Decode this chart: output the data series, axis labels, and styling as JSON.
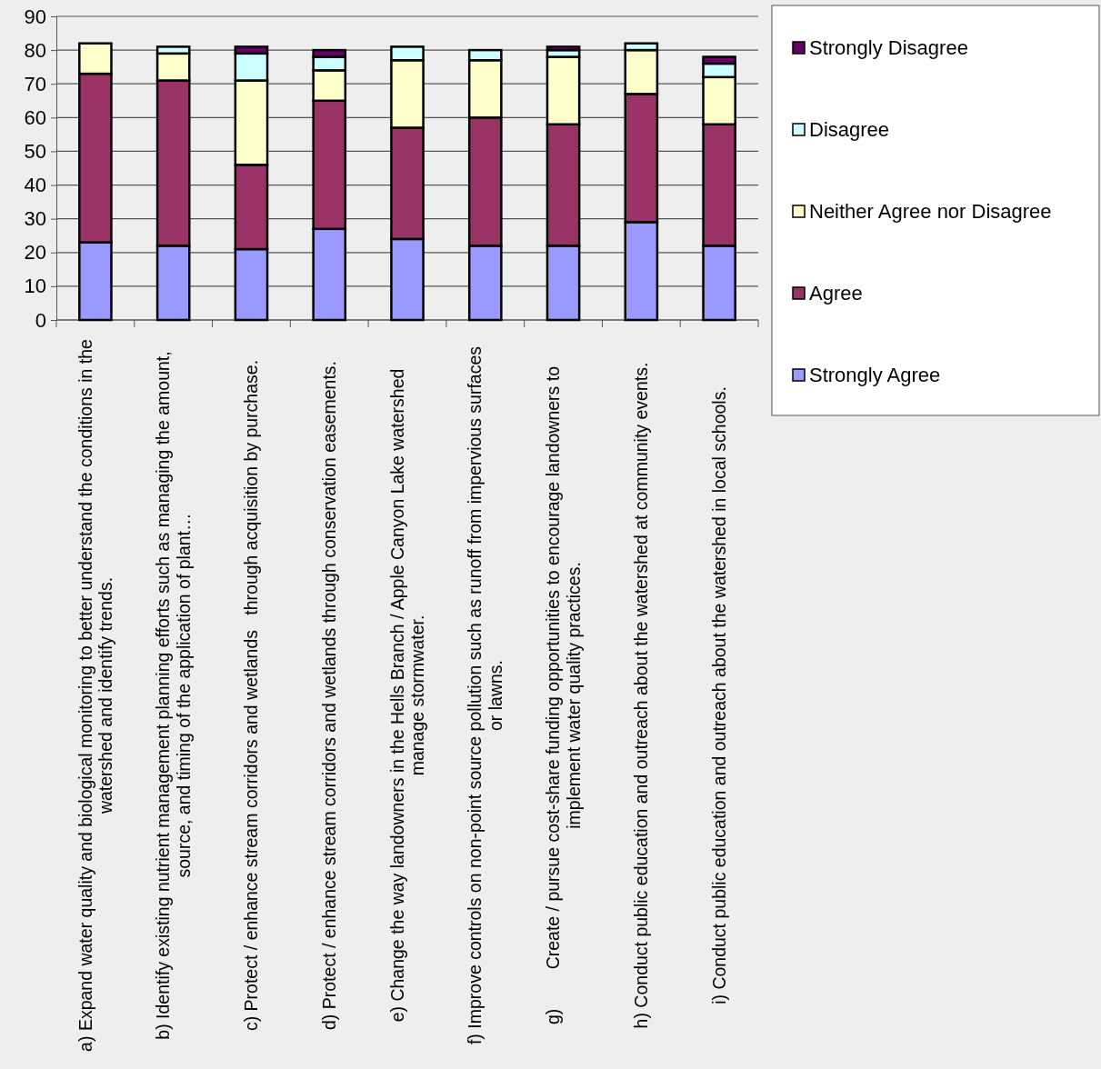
{
  "chart_data": {
    "type": "bar",
    "stacked": true,
    "categories": [
      "a) Expand water quality and biological monitoring to better understand the conditions in the watershed and identify trends.",
      "b) Identify existing nutrient management planning efforts such as managing the amount, source, and timing of the application of plant…",
      "c) Protect / enhance stream corridors and wetlands   through acquisition by purchase.",
      "d) Protect / enhance stream corridors and wetlands through conservation easements.",
      "e) Change the way landowners in the Hells Branch / Apple Canyon Lake watershed manage stormwater.",
      "f) Improve controls on non-point source pollution such as runoff from impervious surfaces or lawns.",
      "g)        Create / pursue cost-share funding opportunities to encourage landowners to implement water quality practices.",
      "h) Conduct public education and outreach about the watershed at community events.",
      "i) Conduct public education and outreach about the watershed in local schools."
    ],
    "series": [
      {
        "name": "Strongly Agree",
        "color": "#9999ff",
        "values": [
          23,
          22,
          21,
          27,
          24,
          22,
          22,
          29,
          22
        ]
      },
      {
        "name": "Agree",
        "color": "#993366",
        "values": [
          50,
          49,
          25,
          38,
          33,
          38,
          36,
          38,
          36
        ]
      },
      {
        "name": "Neither Agree nor Disagree",
        "color": "#ffffcc",
        "values": [
          9,
          8,
          25,
          9,
          20,
          17,
          20,
          13,
          14
        ]
      },
      {
        "name": "Disagree",
        "color": "#ccffff",
        "values": [
          0,
          2,
          8,
          4,
          4,
          3,
          2,
          2,
          4
        ]
      },
      {
        "name": "Strongly Disagree",
        "color": "#660066",
        "values": [
          0,
          0,
          2,
          2,
          0,
          0,
          1,
          0,
          2
        ]
      }
    ],
    "ylim": [
      0,
      90
    ],
    "yticks": [
      0,
      10,
      20,
      30,
      40,
      50,
      60,
      70,
      80,
      90
    ],
    "grid": "y",
    "legend": "right"
  }
}
